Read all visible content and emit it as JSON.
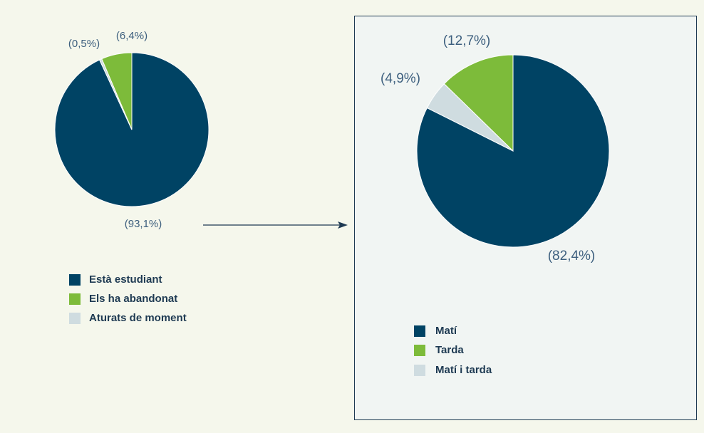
{
  "chart_data": [
    {
      "type": "pie",
      "categories": [
        "Està estudiant",
        "Els ha abandonat",
        "Aturats de moment"
      ],
      "values": [
        93.1,
        6.4,
        0.5
      ],
      "value_labels": [
        "(93,1%)",
        "(6,4%)",
        "(0,5%)"
      ],
      "colors": [
        "#004364",
        "#7dbb3a",
        "#cfdce0"
      ]
    },
    {
      "type": "pie",
      "categories": [
        "Matí",
        "Tarda",
        "Matí i tarda"
      ],
      "values": [
        82.4,
        12.7,
        4.9
      ],
      "value_labels": [
        "(82,4%)",
        "(12,7%)",
        "(4,9%)"
      ],
      "colors": [
        "#004364",
        "#7dbb3a",
        "#cfdce0"
      ]
    }
  ]
}
